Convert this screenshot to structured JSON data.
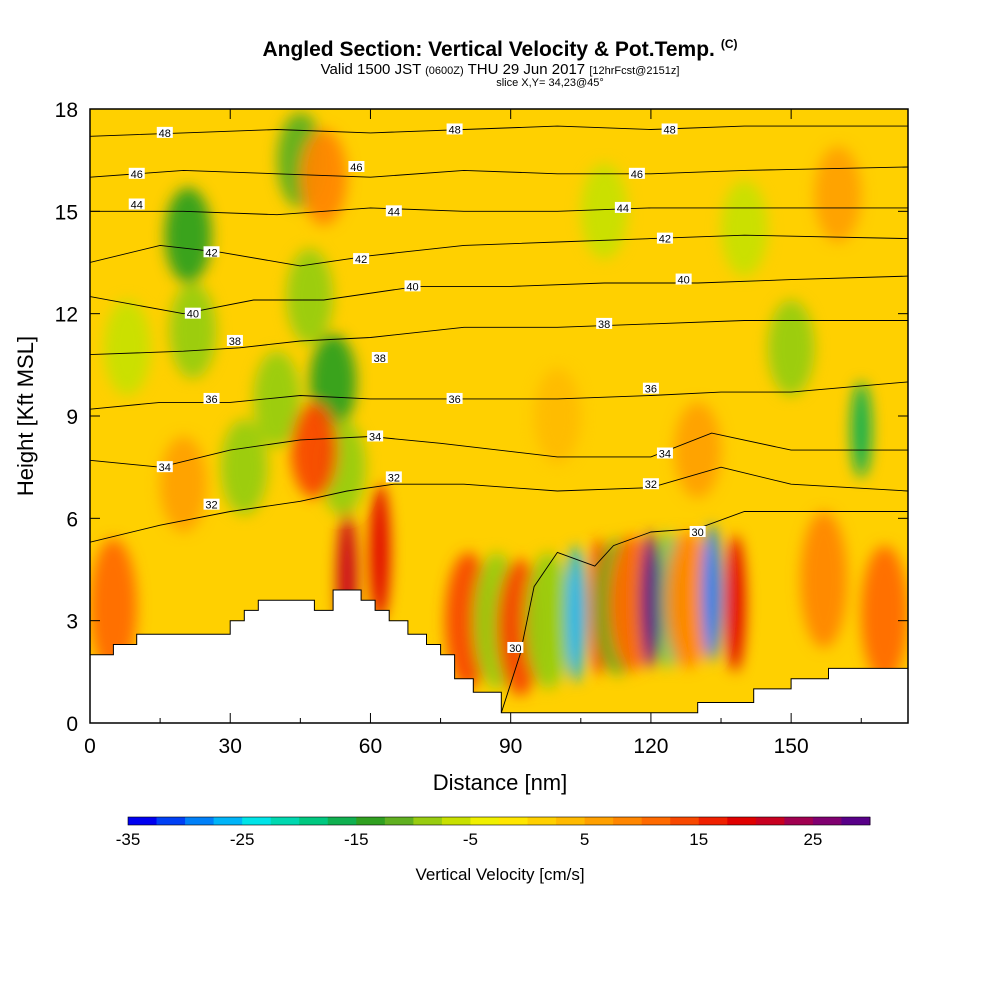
{
  "header": {
    "title": "Angled Section: Vertical Velocity & Pot.Temp.",
    "copyright": "(C)",
    "valid_prefix": "Valid 1500 JST",
    "valid_zulu": "(0600Z)",
    "valid_date": "THU 29 Jun 2017",
    "forecast": "[12hrFcst@2151z]",
    "slice": "slice X,Y= 34,23@45°"
  },
  "chart_data": {
    "type": "heatmap",
    "xlabel": "Distance [nm]",
    "ylabel": "Height [Kft MSL]",
    "xlim": [
      0,
      175
    ],
    "ylim": [
      0,
      18
    ],
    "x_ticks": [
      0,
      30,
      60,
      90,
      120,
      150
    ],
    "y_ticks": [
      0,
      3,
      6,
      9,
      12,
      15,
      18
    ],
    "colorbar": {
      "label": "Vertical Velocity [cm/s]",
      "min": -35,
      "max": 30,
      "step": 2.5,
      "tick_values": [
        -35,
        -25,
        -15,
        -5,
        5,
        15,
        25
      ],
      "colors": [
        "#0000f0",
        "#0040f5",
        "#0080f8",
        "#00b4f8",
        "#00e4e8",
        "#00d8b0",
        "#00c880",
        "#10b050",
        "#30a020",
        "#60b020",
        "#98cc10",
        "#c8e000",
        "#f0f000",
        "#ffe600",
        "#ffd000",
        "#ffba00",
        "#ffa000",
        "#ff8600",
        "#ff6a00",
        "#f84800",
        "#f02000",
        "#e00000",
        "#c80020",
        "#a00050",
        "#800070",
        "#580088"
      ]
    },
    "terrain_top_kft": [
      [
        0,
        2.0
      ],
      [
        5,
        2.0
      ],
      [
        5,
        2.3
      ],
      [
        10,
        2.3
      ],
      [
        10,
        2.6
      ],
      [
        30,
        2.6
      ],
      [
        30,
        3.0
      ],
      [
        33,
        3.0
      ],
      [
        33,
        3.3
      ],
      [
        36,
        3.3
      ],
      [
        36,
        3.6
      ],
      [
        48,
        3.6
      ],
      [
        48,
        3.3
      ],
      [
        52,
        3.3
      ],
      [
        52,
        3.9
      ],
      [
        58,
        3.9
      ],
      [
        58,
        3.6
      ],
      [
        61,
        3.6
      ],
      [
        61,
        3.3
      ],
      [
        64,
        3.3
      ],
      [
        64,
        3.0
      ],
      [
        68,
        3.0
      ],
      [
        68,
        2.6
      ],
      [
        72,
        2.6
      ],
      [
        72,
        2.3
      ],
      [
        75,
        2.3
      ],
      [
        75,
        2.0
      ],
      [
        78,
        2.0
      ],
      [
        78,
        1.3
      ],
      [
        82,
        1.3
      ],
      [
        82,
        0.9
      ],
      [
        88,
        0.9
      ],
      [
        88,
        0.3
      ],
      [
        130,
        0.3
      ],
      [
        130,
        0.6
      ],
      [
        142,
        0.6
      ],
      [
        142,
        1.0
      ],
      [
        150,
        1.0
      ],
      [
        150,
        1.3
      ],
      [
        158,
        1.3
      ],
      [
        158,
        1.6
      ],
      [
        175,
        1.6
      ]
    ],
    "velocity_cells": [
      {
        "x": 21,
        "y": 14.3,
        "v": -14
      },
      {
        "x": 22,
        "y": 11.5,
        "v": -8
      },
      {
        "x": 8,
        "y": 11.0,
        "v": -6
      },
      {
        "x": 45,
        "y": 16.5,
        "v": -12
      },
      {
        "x": 47,
        "y": 12.5,
        "v": -8
      },
      {
        "x": 52,
        "y": 10.0,
        "v": -14
      },
      {
        "x": 54,
        "y": 7.5,
        "v": -10
      },
      {
        "x": 40,
        "y": 9.5,
        "v": -10
      },
      {
        "x": 33,
        "y": 7.5,
        "v": -8
      },
      {
        "x": 50,
        "y": 16.0,
        "v": 8
      },
      {
        "x": 48,
        "y": 8.0,
        "v": 14
      },
      {
        "x": 62,
        "y": 5.0,
        "v": 18
      },
      {
        "x": 55,
        "y": 4.2,
        "v": 20
      },
      {
        "x": 5,
        "y": 3.4,
        "v": 12
      },
      {
        "x": 20,
        "y": 7.0,
        "v": 6
      },
      {
        "x": 81,
        "y": 3.0,
        "v": 14
      },
      {
        "x": 87,
        "y": 3.0,
        "v": -10
      },
      {
        "x": 92,
        "y": 2.8,
        "v": 14
      },
      {
        "x": 98,
        "y": 3.0,
        "v": -8
      },
      {
        "x": 104,
        "y": 3.2,
        "v": -26
      },
      {
        "x": 109,
        "y": 3.4,
        "v": 16
      },
      {
        "x": 113,
        "y": 3.4,
        "v": -12
      },
      {
        "x": 116,
        "y": 3.5,
        "v": 10
      },
      {
        "x": 120,
        "y": 3.6,
        "v": 28
      },
      {
        "x": 124,
        "y": 3.6,
        "v": -20
      },
      {
        "x": 128,
        "y": 3.6,
        "v": 8
      },
      {
        "x": 133,
        "y": 3.8,
        "v": -30
      },
      {
        "x": 138,
        "y": 3.5,
        "v": 18
      },
      {
        "x": 130,
        "y": 8.0,
        "v": 6
      },
      {
        "x": 100,
        "y": 9.0,
        "v": 4
      },
      {
        "x": 110,
        "y": 15.0,
        "v": -6
      },
      {
        "x": 140,
        "y": 14.5,
        "v": -6
      },
      {
        "x": 150,
        "y": 11.0,
        "v": -8
      },
      {
        "x": 165,
        "y": 8.6,
        "v": -16
      },
      {
        "x": 160,
        "y": 15.5,
        "v": 6
      },
      {
        "x": 170,
        "y": 3.2,
        "v": 10
      },
      {
        "x": 157,
        "y": 4.2,
        "v": 8
      }
    ],
    "pot_temp_contours": [
      {
        "label": "30",
        "pts": [
          [
            88,
            0.3
          ],
          [
            92,
            2.0
          ],
          [
            95,
            4.0
          ],
          [
            100,
            5.0
          ],
          [
            108,
            4.6
          ],
          [
            112,
            5.2
          ],
          [
            120,
            5.6
          ],
          [
            130,
            5.7
          ],
          [
            140,
            6.2
          ],
          [
            160,
            6.2
          ],
          [
            175,
            6.2
          ]
        ],
        "labels_at": [
          [
            91,
            2.2
          ],
          [
            130,
            5.6
          ]
        ]
      },
      {
        "label": "32",
        "pts": [
          [
            0,
            5.3
          ],
          [
            15,
            5.8
          ],
          [
            30,
            6.2
          ],
          [
            45,
            6.5
          ],
          [
            55,
            6.8
          ],
          [
            65,
            7.0
          ],
          [
            80,
            7.0
          ],
          [
            100,
            6.8
          ],
          [
            120,
            6.9
          ],
          [
            135,
            7.5
          ],
          [
            150,
            7.0
          ],
          [
            175,
            6.8
          ]
        ],
        "labels_at": [
          [
            26,
            6.4
          ],
          [
            65,
            7.2
          ],
          [
            120,
            7.0
          ]
        ]
      },
      {
        "label": "34",
        "pts": [
          [
            0,
            7.7
          ],
          [
            15,
            7.5
          ],
          [
            30,
            8.0
          ],
          [
            45,
            8.3
          ],
          [
            60,
            8.4
          ],
          [
            75,
            8.2
          ],
          [
            100,
            7.8
          ],
          [
            120,
            7.8
          ],
          [
            133,
            8.5
          ],
          [
            150,
            8.0
          ],
          [
            175,
            8.0
          ]
        ],
        "labels_at": [
          [
            16,
            7.5
          ],
          [
            61,
            8.4
          ],
          [
            123,
            7.9
          ]
        ]
      },
      {
        "label": "36",
        "pts": [
          [
            0,
            9.2
          ],
          [
            15,
            9.4
          ],
          [
            30,
            9.4
          ],
          [
            45,
            9.6
          ],
          [
            60,
            9.5
          ],
          [
            80,
            9.5
          ],
          [
            100,
            9.5
          ],
          [
            120,
            9.6
          ],
          [
            135,
            9.7
          ],
          [
            150,
            9.7
          ],
          [
            175,
            10.0
          ]
        ],
        "labels_at": [
          [
            26,
            9.5
          ],
          [
            78,
            9.5
          ],
          [
            120,
            9.8
          ]
        ]
      },
      {
        "label": "38",
        "pts": [
          [
            0,
            10.8
          ],
          [
            20,
            10.9
          ],
          [
            32,
            11.0
          ],
          [
            45,
            11.2
          ],
          [
            60,
            11.3
          ],
          [
            80,
            11.6
          ],
          [
            100,
            11.6
          ],
          [
            120,
            11.7
          ],
          [
            140,
            11.8
          ],
          [
            160,
            11.8
          ],
          [
            175,
            11.8
          ]
        ],
        "labels_at": [
          [
            31,
            11.2
          ],
          [
            62,
            10.7
          ],
          [
            110,
            11.7
          ]
        ]
      },
      {
        "label": "40",
        "pts": [
          [
            0,
            12.5
          ],
          [
            20,
            12.0
          ],
          [
            35,
            12.4
          ],
          [
            50,
            12.4
          ],
          [
            70,
            12.8
          ],
          [
            90,
            12.8
          ],
          [
            110,
            12.9
          ],
          [
            130,
            12.9
          ],
          [
            150,
            13.0
          ],
          [
            175,
            13.1
          ]
        ],
        "labels_at": [
          [
            22,
            12.0
          ],
          [
            69,
            12.8
          ],
          [
            127,
            13.0
          ]
        ]
      },
      {
        "label": "42",
        "pts": [
          [
            0,
            13.5
          ],
          [
            15,
            14.0
          ],
          [
            28,
            13.8
          ],
          [
            45,
            13.4
          ],
          [
            60,
            13.7
          ],
          [
            80,
            14.0
          ],
          [
            100,
            14.1
          ],
          [
            120,
            14.2
          ],
          [
            140,
            14.3
          ],
          [
            175,
            14.2
          ]
        ],
        "labels_at": [
          [
            26,
            13.8
          ],
          [
            58,
            13.6
          ],
          [
            123,
            14.2
          ]
        ]
      },
      {
        "label": "44",
        "pts": [
          [
            0,
            15.0
          ],
          [
            20,
            15.0
          ],
          [
            40,
            14.9
          ],
          [
            60,
            15.1
          ],
          [
            80,
            15.0
          ],
          [
            100,
            15.0
          ],
          [
            120,
            15.1
          ],
          [
            140,
            15.1
          ],
          [
            175,
            15.1
          ]
        ],
        "labels_at": [
          [
            10,
            15.2
          ],
          [
            65,
            15.0
          ],
          [
            114,
            15.1
          ]
        ]
      },
      {
        "label": "46",
        "pts": [
          [
            0,
            16.0
          ],
          [
            20,
            16.2
          ],
          [
            40,
            16.1
          ],
          [
            60,
            16.0
          ],
          [
            80,
            16.2
          ],
          [
            100,
            16.1
          ],
          [
            120,
            16.1
          ],
          [
            140,
            16.2
          ],
          [
            175,
            16.3
          ]
        ],
        "labels_at": [
          [
            10,
            16.1
          ],
          [
            57,
            16.3
          ],
          [
            117,
            16.1
          ]
        ]
      },
      {
        "label": "48",
        "pts": [
          [
            0,
            17.2
          ],
          [
            20,
            17.3
          ],
          [
            40,
            17.4
          ],
          [
            60,
            17.3
          ],
          [
            80,
            17.4
          ],
          [
            100,
            17.5
          ],
          [
            120,
            17.4
          ],
          [
            140,
            17.5
          ],
          [
            175,
            17.5
          ]
        ],
        "labels_at": [
          [
            16,
            17.3
          ],
          [
            78,
            17.4
          ],
          [
            124,
            17.4
          ]
        ]
      }
    ]
  }
}
